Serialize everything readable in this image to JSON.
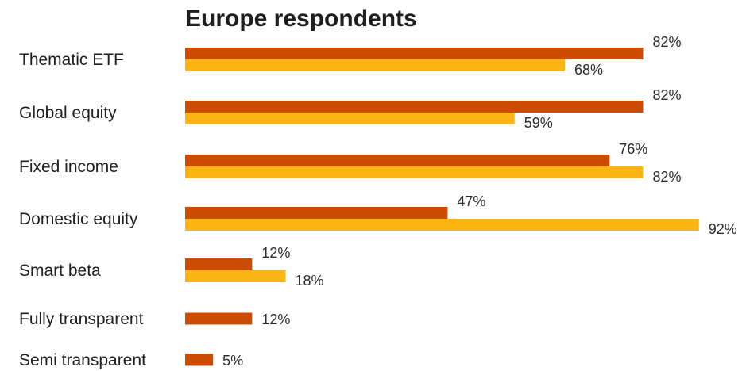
{
  "chart_data": {
    "type": "bar",
    "orientation": "horizontal",
    "title": "Europe respondents",
    "categories": [
      "Thematic ETF",
      "Global equity",
      "Fixed income",
      "Domestic equity",
      "Smart beta",
      "Fully transparent",
      "Semi transparent"
    ],
    "series": [
      {
        "color": "#cc4c02",
        "values": [
          82,
          82,
          76,
          47,
          12,
          12,
          5
        ],
        "labels": [
          "82%",
          "82%",
          "76%",
          "47%",
          "12%",
          "12%",
          "5%"
        ]
      },
      {
        "color": "#fdb515",
        "values": [
          68,
          59,
          82,
          92,
          18,
          null,
          null
        ],
        "labels": [
          "68%",
          "59%",
          "82%",
          "92%",
          "18%",
          "",
          ""
        ]
      }
    ],
    "xlim": [
      0,
      100
    ],
    "grid": false,
    "legend": "none"
  }
}
